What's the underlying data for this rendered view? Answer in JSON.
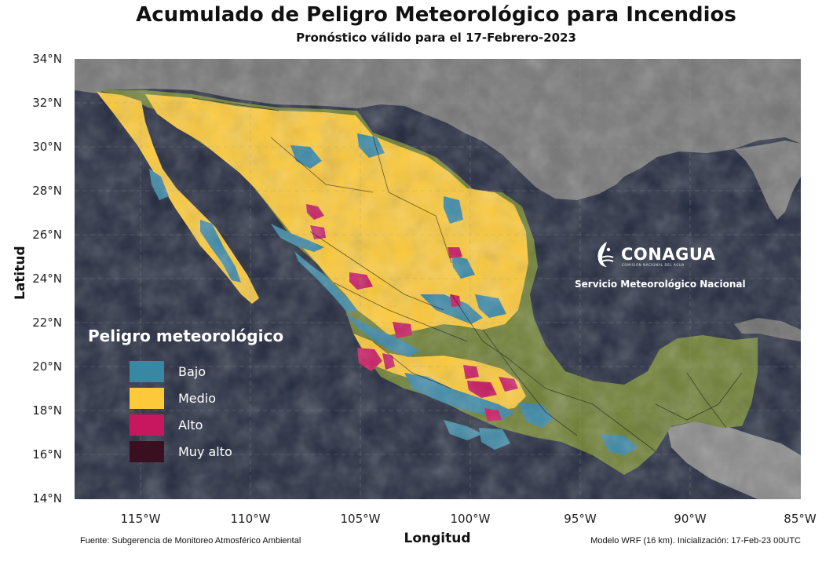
{
  "header": {
    "title": "Acumulado de Peligro Meteorológico para Incendios",
    "subtitle": "Pronóstico válido para el 17-Febrero-2023"
  },
  "axes": {
    "xlabel": "Longitud",
    "ylabel": "Latitud",
    "yticks": [
      "34°N",
      "32°N",
      "30°N",
      "28°N",
      "26°N",
      "24°N",
      "22°N",
      "20°N",
      "18°N",
      "16°N",
      "14°N"
    ],
    "xticks": [
      "115°W",
      "110°W",
      "105°W",
      "100°W",
      "95°W",
      "90°W",
      "85°W"
    ],
    "lat_range": [
      14,
      34
    ],
    "lon_range": [
      -118,
      -85
    ],
    "grid": true
  },
  "legend": {
    "title": "Peligro meteorológico",
    "items": [
      {
        "label": "Bajo",
        "color": "#3a87a4"
      },
      {
        "label": "Medio",
        "color": "#fcc938"
      },
      {
        "label": "Alto",
        "color": "#c8175f"
      },
      {
        "label": "Muy alto",
        "color": "#3a1020"
      }
    ]
  },
  "branding": {
    "name": "CONAGUA",
    "tagline": "COMISIÓN NACIONAL DEL AGUA",
    "service": "Servicio Meteorológico Nacional",
    "icon": "conagua-logo-icon"
  },
  "footer": {
    "source": "Fuente: Subgerencia de Monitoreo Atmosférico Ambiental",
    "model": "Modelo WRF (16 km). Inicialización: 17-Feb-23  00UTC"
  },
  "colors": {
    "ocean": "#232a3e",
    "land_outside": "#7d7d7d",
    "vegetation": "#6e7f33",
    "bajo": "#3a87a4",
    "medio": "#fcc938",
    "alto": "#c8175f"
  }
}
